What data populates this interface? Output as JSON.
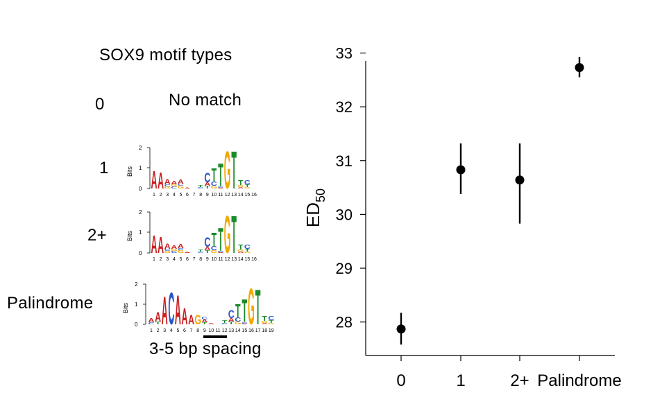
{
  "panel": {
    "title": "SOX9 motif types",
    "spacing_label": "3-5 bp spacing",
    "no_match_text": "No match",
    "logo_axis_label": "Bits",
    "logo_yticks": [
      "2",
      "1",
      "0"
    ]
  },
  "motif_rows": [
    {
      "label": "0"
    },
    {
      "label": "1",
      "positions": [
        "1",
        "2",
        "3",
        "4",
        "5",
        "6",
        "7",
        "8",
        "9",
        "10",
        "11",
        "12",
        "13",
        "14",
        "15",
        "16"
      ]
    },
    {
      "label": "2+",
      "positions": [
        "1",
        "2",
        "3",
        "4",
        "5",
        "6",
        "7",
        "8",
        "9",
        "10",
        "11",
        "12",
        "13",
        "14",
        "15",
        "16"
      ]
    },
    {
      "label": "Palindrome",
      "positions": [
        "1",
        "2",
        "3",
        "4",
        "5",
        "6",
        "7",
        "8",
        "9",
        "10",
        "11",
        "12",
        "13",
        "14",
        "15",
        "16",
        "17",
        "18",
        "19"
      ]
    }
  ],
  "colors": {
    "A": "#cc1f1f",
    "C": "#2a55c8",
    "G": "#f2a900",
    "T": "#1a8a2a",
    "point": "#000000"
  },
  "chart_data": {
    "type": "scatter",
    "categories": [
      "0",
      "1",
      "2+",
      "Palindrome"
    ],
    "values": [
      27.87,
      30.83,
      30.64,
      32.73
    ],
    "error_low": [
      27.58,
      30.38,
      29.83,
      32.55
    ],
    "error_high": [
      28.17,
      31.32,
      31.32,
      32.93
    ],
    "ylabel_main": "ED",
    "ylabel_sub": "50",
    "yticks": [
      "28",
      "29",
      "30",
      "31",
      "32",
      "33"
    ],
    "ylim": [
      27.3,
      33.2
    ],
    "grid": false
  }
}
